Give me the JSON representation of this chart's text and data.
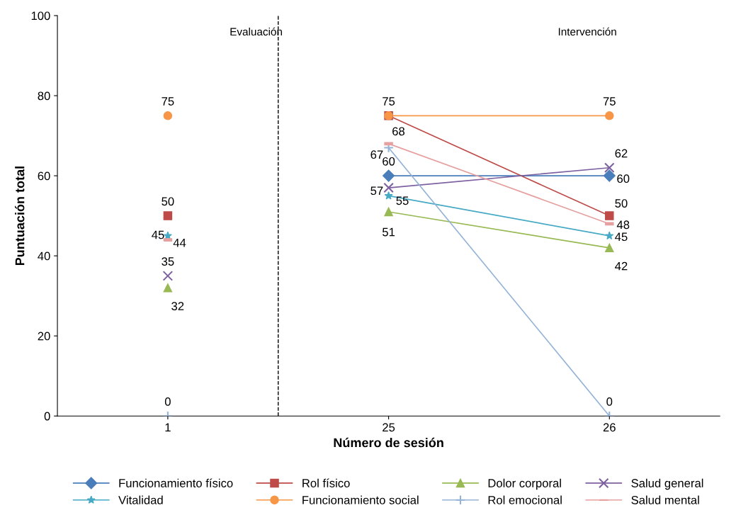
{
  "chart_data": {
    "type": "line",
    "xlabel": "Número de sesión",
    "ylabel": "Puntuación total",
    "categories": [
      "1",
      "25",
      "26"
    ],
    "ylim": [
      0,
      100
    ],
    "yticks": [
      0,
      20,
      40,
      60,
      80,
      100
    ],
    "grid": false,
    "legend": "bottom",
    "annotations": [
      "Evaluación",
      "Intervención"
    ],
    "series": [
      {
        "name": "Funcionamiento físico",
        "color": "#4a7ebb",
        "marker": "diamond",
        "values": [
          null,
          60,
          60
        ],
        "value_labels": [
          null,
          "60",
          "60"
        ]
      },
      {
        "name": "Rol físico",
        "color": "#be4b48",
        "marker": "square",
        "values": [
          null,
          75,
          50
        ],
        "value_labels": [
          null,
          null,
          "50"
        ]
      },
      {
        "name": "Dolor corporal",
        "color": "#98b954",
        "marker": "triangle",
        "values": [
          null,
          51,
          42
        ],
        "value_labels": [
          null,
          "51",
          "42"
        ]
      },
      {
        "name": "Salud general",
        "color": "#7d60a0",
        "marker": "cross",
        "values": [
          null,
          57,
          62
        ],
        "value_labels": [
          null,
          "57",
          "62"
        ]
      },
      {
        "name": "Vitalidad",
        "color": "#46aac5",
        "marker": "star",
        "values": [
          null,
          55,
          45
        ],
        "value_labels": [
          null,
          "55",
          "45"
        ]
      },
      {
        "name": "Funcionamiento social",
        "color": "#f79646",
        "marker": "circle",
        "values": [
          null,
          75,
          75
        ],
        "value_labels": [
          null,
          "75",
          "75"
        ]
      },
      {
        "name": "Rol emocional",
        "color": "#94b3d6",
        "marker": "cross",
        "values": [
          null,
          67,
          0
        ],
        "value_labels": [
          null,
          "67",
          "0"
        ]
      },
      {
        "name": "Salud mental",
        "color": "#e6a0a0",
        "values": [
          null,
          68,
          48
        ],
        "value_labels": [
          null,
          "68",
          "48"
        ]
      },
      {
        "type": "scatter",
        "color": "#4a7ebb",
        "marker": "diamond",
        "values": [
          null,
          null,
          null
        ],
        "value_labels": [
          null,
          null,
          null
        ]
      },
      {
        "type": "scatter",
        "color": "#be4b48",
        "marker": "square",
        "values": [
          50,
          null,
          null
        ],
        "value_labels": [
          "50",
          null,
          null
        ]
      },
      {
        "type": "scatter",
        "color": "#98b954",
        "marker": "triangle",
        "values": [
          32,
          null,
          null
        ],
        "value_labels": [
          "32",
          null,
          null
        ]
      },
      {
        "type": "scatter",
        "color": "#7d60a0",
        "marker": "cross",
        "values": [
          35,
          null,
          null
        ],
        "value_labels": [
          "35",
          null,
          null
        ]
      },
      {
        "type": "scatter",
        "color": "#46aac5",
        "marker": "star",
        "values": [
          45,
          null,
          null
        ],
        "value_labels": [
          "45",
          null,
          null
        ]
      },
      {
        "type": "scatter",
        "color": "#f79646",
        "marker": "circle",
        "values": [
          75,
          null,
          null
        ],
        "value_labels": [
          "75",
          null,
          null
        ]
      },
      {
        "type": "scatter",
        "color": "#94b3d6",
        "marker": "cross",
        "values": [
          0,
          null,
          null
        ],
        "value_labels": [
          "0",
          null,
          null
        ]
      },
      {
        "type": "scatter",
        "color": "#e6a0a0",
        "values": [
          44,
          null,
          null
        ],
        "value_labels": [
          "44",
          null,
          null
        ]
      }
    ]
  }
}
